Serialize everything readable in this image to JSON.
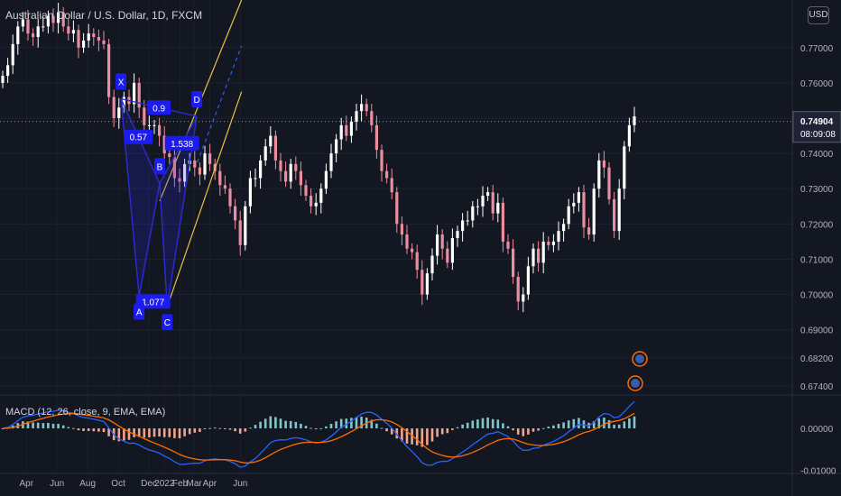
{
  "symbol_title": "Australian Dollar / U.S. Dollar, 1D, FXCM",
  "currency_button": "USD",
  "last_price": "0.74904",
  "countdown": "08:09:08",
  "colors": {
    "background": "#131722",
    "up_candle": "#ffffff",
    "down_candle": "#ec8d9f",
    "pattern": "#2a2bd6",
    "label_bg": "#1c1cf0",
    "channel": "#e8c23f",
    "macd_line": "#2962ff",
    "signal_line": "#ff6d00",
    "hist_pos": "#83c5c8",
    "hist_neg": "#f2a58a",
    "price_tag": "#131722"
  },
  "price_axis": {
    "ticks": [
      "0.77000",
      "0.76000",
      "0.75000",
      "0.74000",
      "0.73000",
      "0.72000",
      "0.71000",
      "0.70000",
      "0.69000",
      "0.68200",
      "0.67400"
    ]
  },
  "time_axis": {
    "ticks": [
      "Apr",
      "Jun",
      "Aug",
      "Oct",
      "Dec",
      "2022",
      "Feb",
      "Mar",
      "Apr",
      "Jun"
    ]
  },
  "chart_data": [
    {
      "type": "candlestick",
      "title": "Australian Dollar / U.S. Dollar, 1D, FXCM",
      "y_range": [
        0.6715,
        0.7835
      ],
      "harmonic_pattern": {
        "points": [
          {
            "label": "X",
            "date": "2021-10-28",
            "price": 0.7555
          },
          {
            "label": "A",
            "date": "2021-12-03",
            "price": 0.6995
          },
          {
            "label": "B",
            "date": "2022-01-13",
            "price": 0.7315
          },
          {
            "label": "C",
            "date": "2022-01-28",
            "price": 0.6965
          },
          {
            "label": "D",
            "date": "2022-03-28",
            "price": 0.7505
          }
        ],
        "ratios": [
          "0.9",
          "0.57",
          "1.538",
          "1.077"
        ]
      },
      "close_series": [
        0.762,
        0.765,
        0.771,
        0.776,
        0.778,
        0.774,
        0.773,
        0.776,
        0.776,
        0.779,
        0.777,
        0.78,
        0.776,
        0.774,
        0.775,
        0.77,
        0.772,
        0.774,
        0.773,
        0.772,
        0.771,
        0.756,
        0.75,
        0.753,
        0.756,
        0.754,
        0.76,
        0.753,
        0.748,
        0.748,
        0.748,
        0.745,
        0.74,
        0.739,
        0.733,
        0.732,
        0.737,
        0.738,
        0.736,
        0.734,
        0.74,
        0.737,
        0.735,
        0.731,
        0.73,
        0.725,
        0.721,
        0.714,
        0.725,
        0.733,
        0.733,
        0.738,
        0.742,
        0.745,
        0.738,
        0.735,
        0.732,
        0.737,
        0.735,
        0.731,
        0.728,
        0.725,
        0.726,
        0.73,
        0.735,
        0.74,
        0.744,
        0.748,
        0.745,
        0.749,
        0.752,
        0.754,
        0.752,
        0.748,
        0.741,
        0.735,
        0.733,
        0.729,
        0.72,
        0.717,
        0.713,
        0.712,
        0.707,
        0.7,
        0.706,
        0.711,
        0.717,
        0.713,
        0.709,
        0.716,
        0.718,
        0.721,
        0.721,
        0.725,
        0.725,
        0.728,
        0.729,
        0.723,
        0.726,
        0.715,
        0.713,
        0.705,
        0.698,
        0.7,
        0.708,
        0.713,
        0.709,
        0.715,
        0.714,
        0.715,
        0.718,
        0.72,
        0.725,
        0.726,
        0.729,
        0.719,
        0.717,
        0.73,
        0.738,
        0.736,
        0.727,
        0.718,
        0.73,
        0.742,
        0.748,
        0.7505
      ]
    },
    {
      "type": "macd",
      "title": "MACD (12, 26, close, 9, EMA, EMA)",
      "y_range": [
        -0.0105,
        0.0075
      ],
      "ticks": [
        "0.00000",
        "-0.01000"
      ]
    }
  ]
}
